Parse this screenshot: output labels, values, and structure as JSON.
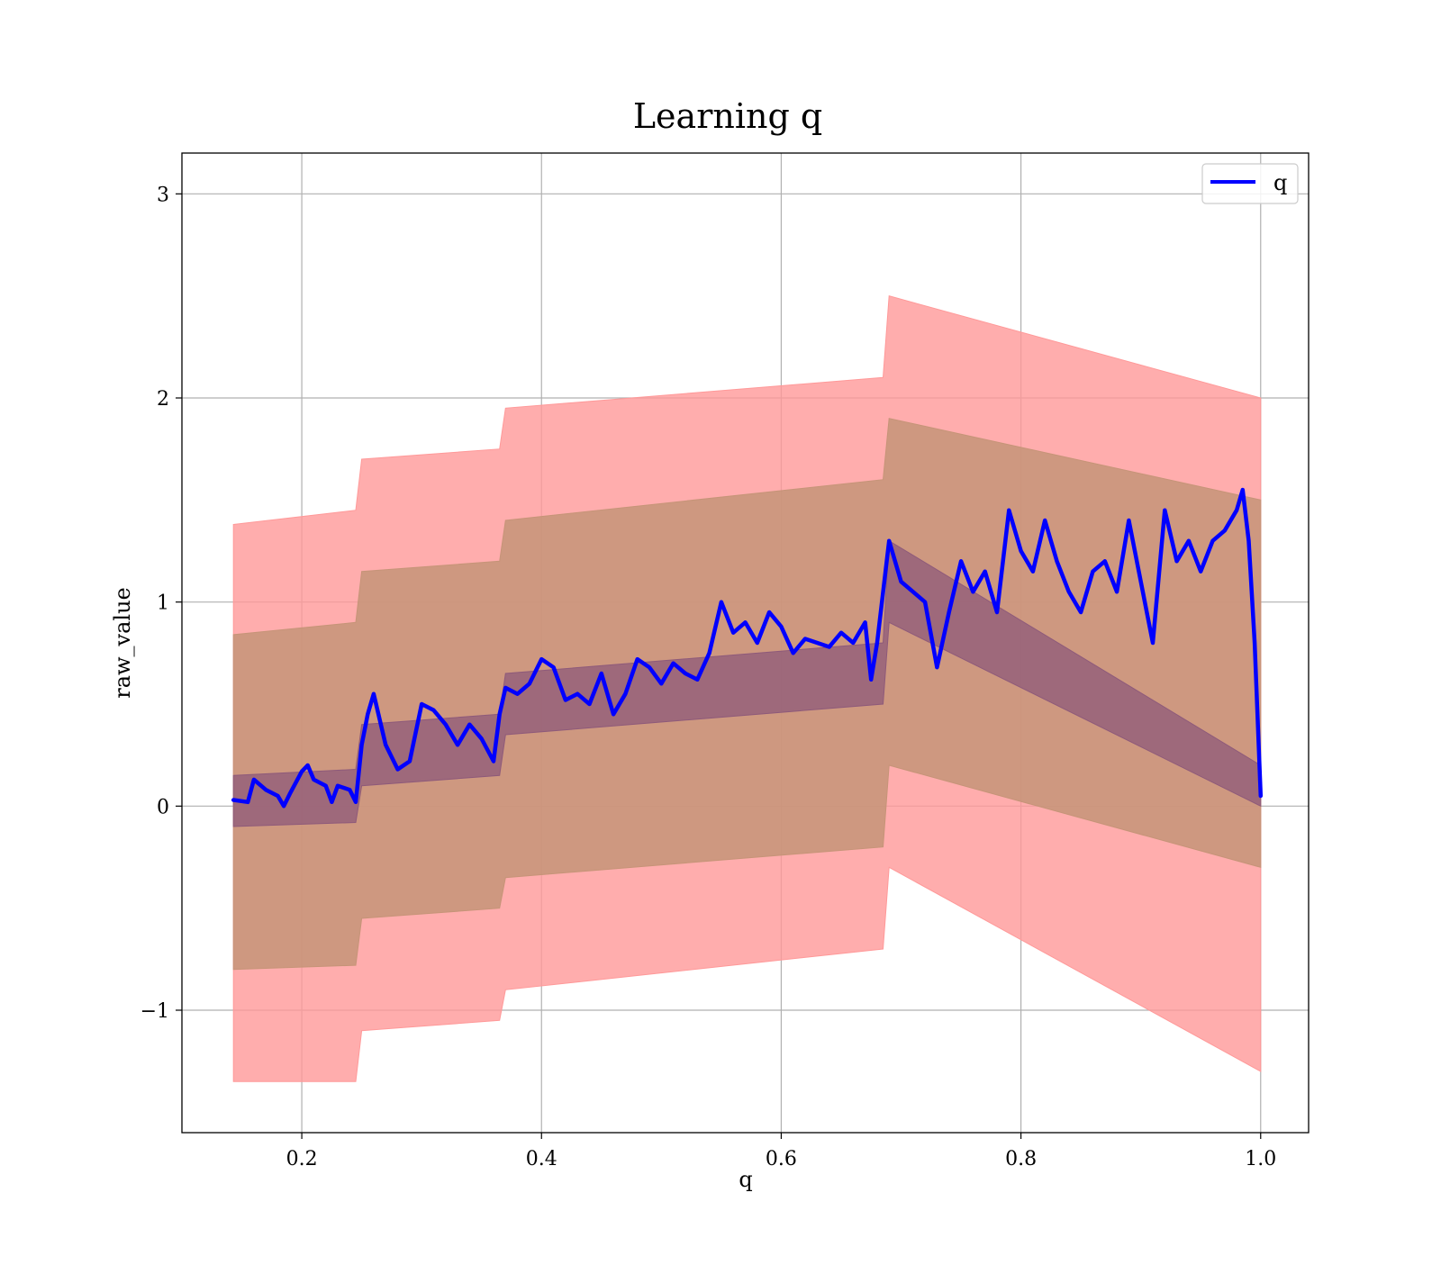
{
  "chart_data": {
    "type": "line",
    "title": "Learning q",
    "xlabel": "q",
    "ylabel": "raw_value",
    "xlim": [
      0.1,
      1.04
    ],
    "ylim": [
      -1.6,
      3.2
    ],
    "xticks": [
      0.2,
      0.4,
      0.6,
      0.8,
      1.0
    ],
    "xtick_labels": [
      "0.2",
      "0.4",
      "0.6",
      "0.8",
      "1.0"
    ],
    "yticks": [
      -1,
      0,
      1,
      2,
      3
    ],
    "ytick_labels": [
      "−1",
      "0",
      "1",
      "2",
      "3"
    ],
    "grid": true,
    "legend": {
      "position": "top-right",
      "entries": [
        "q"
      ]
    },
    "colors": {
      "line": "#0000ff",
      "outer_band": "#ff9999",
      "middle_band": "#c69478",
      "inner_band": "#8e5a7a"
    },
    "series": [
      {
        "name": "q",
        "x": [
          0.143,
          0.155,
          0.16,
          0.17,
          0.18,
          0.185,
          0.19,
          0.2,
          0.205,
          0.21,
          0.22,
          0.225,
          0.23,
          0.24,
          0.245,
          0.25,
          0.255,
          0.26,
          0.27,
          0.28,
          0.285,
          0.29,
          0.3,
          0.31,
          0.32,
          0.33,
          0.34,
          0.35,
          0.36,
          0.365,
          0.37,
          0.38,
          0.39,
          0.4,
          0.41,
          0.42,
          0.43,
          0.44,
          0.45,
          0.46,
          0.47,
          0.48,
          0.49,
          0.5,
          0.51,
          0.52,
          0.53,
          0.54,
          0.55,
          0.56,
          0.57,
          0.58,
          0.59,
          0.6,
          0.61,
          0.62,
          0.63,
          0.64,
          0.65,
          0.66,
          0.67,
          0.675,
          0.68,
          0.69,
          0.7,
          0.71,
          0.72,
          0.73,
          0.74,
          0.75,
          0.76,
          0.77,
          0.78,
          0.79,
          0.8,
          0.81,
          0.82,
          0.83,
          0.84,
          0.85,
          0.86,
          0.87,
          0.88,
          0.89,
          0.9,
          0.91,
          0.92,
          0.93,
          0.94,
          0.95,
          0.96,
          0.97,
          0.98,
          0.985,
          0.99,
          0.995,
          1.0
        ],
        "values": [
          0.03,
          0.02,
          0.13,
          0.08,
          0.05,
          0.0,
          0.06,
          0.17,
          0.2,
          0.13,
          0.1,
          0.02,
          0.1,
          0.08,
          0.02,
          0.3,
          0.45,
          0.55,
          0.3,
          0.18,
          0.2,
          0.22,
          0.5,
          0.47,
          0.4,
          0.3,
          0.4,
          0.33,
          0.22,
          0.45,
          0.58,
          0.55,
          0.6,
          0.72,
          0.68,
          0.52,
          0.55,
          0.5,
          0.65,
          0.45,
          0.55,
          0.72,
          0.68,
          0.6,
          0.7,
          0.65,
          0.62,
          0.75,
          1.0,
          0.85,
          0.9,
          0.8,
          0.95,
          0.88,
          0.75,
          0.82,
          0.8,
          0.78,
          0.85,
          0.8,
          0.9,
          0.62,
          0.8,
          1.3,
          1.1,
          1.05,
          1.0,
          0.68,
          0.95,
          1.2,
          1.05,
          1.15,
          0.95,
          1.45,
          1.25,
          1.15,
          1.4,
          1.2,
          1.05,
          0.95,
          1.15,
          1.2,
          1.05,
          1.4,
          1.1,
          0.8,
          1.45,
          1.2,
          1.3,
          1.15,
          1.3,
          1.35,
          1.45,
          1.55,
          1.3,
          0.8,
          0.05
        ]
      }
    ],
    "bands": [
      {
        "x": [
          0.143,
          0.245,
          0.25,
          0.365,
          0.37,
          0.685,
          0.69,
          1.0
        ],
        "lower": [
          -1.35,
          -1.35,
          -1.1,
          -1.05,
          -0.9,
          -0.7,
          -0.3,
          -1.3
        ],
        "upper": [
          1.38,
          1.45,
          1.7,
          1.75,
          1.95,
          2.1,
          2.5,
          2.0
        ]
      },
      {
        "x": [
          0.143,
          0.245,
          0.25,
          0.365,
          0.37,
          0.685,
          0.69,
          1.0
        ],
        "lower": [
          -0.8,
          -0.78,
          -0.55,
          -0.5,
          -0.35,
          -0.2,
          0.2,
          -0.3
        ],
        "upper": [
          0.84,
          0.9,
          1.15,
          1.2,
          1.4,
          1.6,
          1.9,
          1.5
        ]
      },
      {
        "x": [
          0.143,
          0.245,
          0.25,
          0.365,
          0.37,
          0.685,
          0.69,
          1.0
        ],
        "lower": [
          -0.1,
          -0.08,
          0.1,
          0.15,
          0.35,
          0.5,
          0.9,
          0.0
        ],
        "upper": [
          0.15,
          0.18,
          0.4,
          0.45,
          0.65,
          0.8,
          1.3,
          0.2
        ]
      }
    ]
  }
}
